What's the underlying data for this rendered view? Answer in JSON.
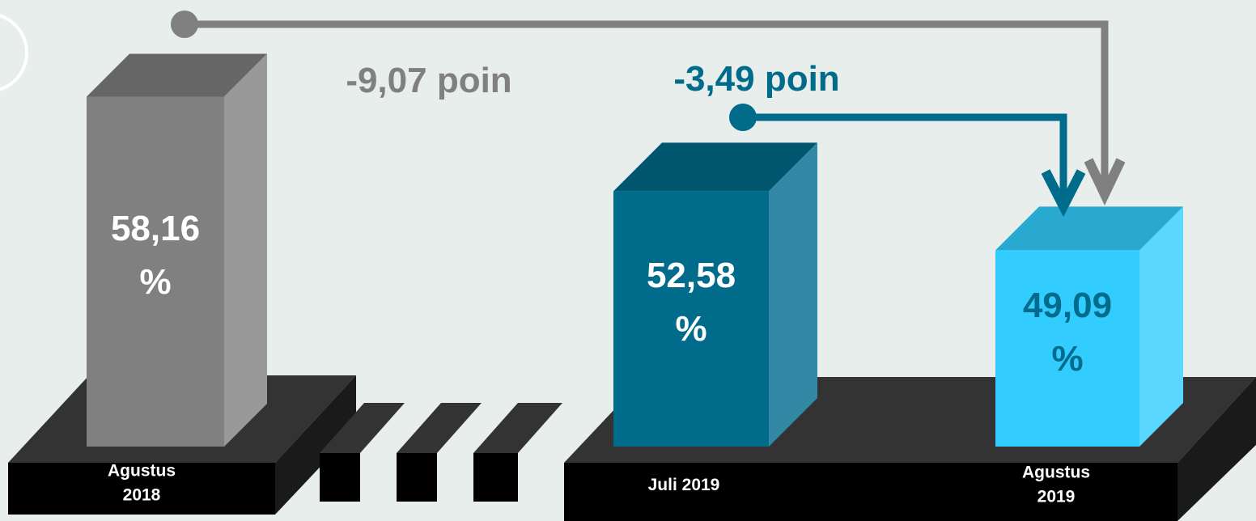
{
  "chart_data": {
    "type": "bar",
    "categories": [
      "Agustus 2018",
      "Juli 2019",
      "Agustus 2019"
    ],
    "values": [
      58.16,
      52.58,
      49.09
    ],
    "value_labels": [
      "58,16 %",
      "52,58 %",
      "49,09 %"
    ],
    "colors": [
      "#808080",
      "#006b8a",
      "#33ccff"
    ],
    "side_colors": [
      "#999999",
      "#3388a5",
      "#5ad6ff"
    ],
    "top_colors": [
      "#666666",
      "#00566f",
      "#29a8d0"
    ],
    "value_label_colors": [
      "#ffffff",
      "#ffffff",
      "#006b8a"
    ],
    "ylim": [
      37.5,
      60
    ],
    "annotations": [
      {
        "text": "-9,07 poin",
        "color": "#808080"
      },
      {
        "text": "-3,49 poin",
        "color": "#006b8a"
      }
    ]
  }
}
